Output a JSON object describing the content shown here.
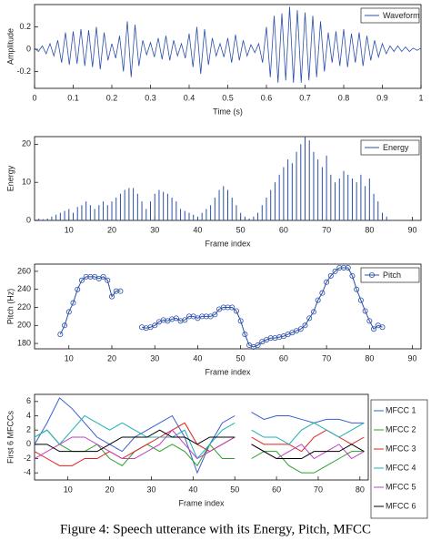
{
  "chart_data": [
    {
      "type": "line",
      "ylabel": "Amplitude",
      "xlabel": "Time (s)",
      "legend": "upper right",
      "xlim": [
        0,
        1
      ],
      "ylim": [
        -0.35,
        0.4
      ],
      "xticks": [
        0,
        0.1,
        0.2,
        0.3,
        0.4,
        0.5,
        0.6,
        0.7,
        0.8,
        0.9,
        1
      ],
      "yticks": [
        -0.2,
        0,
        0.2
      ],
      "x": [
        0,
        0.01,
        0.02,
        0.03,
        0.04,
        0.05,
        0.06,
        0.07,
        0.08,
        0.09,
        0.1,
        0.11,
        0.12,
        0.13,
        0.14,
        0.15,
        0.16,
        0.17,
        0.18,
        0.19,
        0.2,
        0.21,
        0.22,
        0.23,
        0.24,
        0.25,
        0.26,
        0.27,
        0.28,
        0.29,
        0.3,
        0.31,
        0.32,
        0.33,
        0.34,
        0.35,
        0.36,
        0.37,
        0.38,
        0.39,
        0.4,
        0.41,
        0.42,
        0.43,
        0.44,
        0.45,
        0.46,
        0.47,
        0.48,
        0.49,
        0.5,
        0.51,
        0.52,
        0.53,
        0.54,
        0.55,
        0.56,
        0.57,
        0.58,
        0.59,
        0.6,
        0.61,
        0.62,
        0.63,
        0.64,
        0.65,
        0.66,
        0.67,
        0.68,
        0.69,
        0.7,
        0.71,
        0.72,
        0.73,
        0.74,
        0.75,
        0.76,
        0.77,
        0.78,
        0.79,
        0.8,
        0.81,
        0.82,
        0.83,
        0.84,
        0.85,
        0.86,
        0.87,
        0.88,
        0.89,
        0.9,
        0.91,
        0.92,
        0.93,
        0.94,
        0.95,
        0.96,
        0.97,
        0.98,
        0.99,
        1
      ],
      "series": [
        {
          "name": "Waveform",
          "color": "#2b4fa8",
          "values": [
            0.01,
            -0.02,
            0.03,
            -0.04,
            0.05,
            -0.06,
            0.08,
            -0.12,
            0.15,
            -0.14,
            0.16,
            -0.13,
            0.18,
            -0.15,
            0.17,
            -0.16,
            0.2,
            -0.18,
            0.15,
            -0.1,
            0.05,
            -0.08,
            0.12,
            -0.2,
            0.25,
            -0.25,
            0.22,
            -0.15,
            0.08,
            -0.05,
            0.06,
            -0.07,
            0.1,
            -0.09,
            0.12,
            -0.1,
            0.08,
            -0.06,
            0.05,
            -0.08,
            0.14,
            -0.16,
            0.2,
            -0.22,
            0.18,
            -0.14,
            0.1,
            -0.06,
            0.05,
            -0.07,
            0.1,
            -0.12,
            0.13,
            -0.1,
            0.08,
            -0.06,
            0.04,
            -0.03,
            0.05,
            -0.12,
            0.2,
            -0.25,
            0.3,
            -0.3,
            0.32,
            -0.28,
            0.38,
            -0.3,
            0.35,
            -0.3,
            0.33,
            -0.28,
            0.3,
            -0.25,
            0.25,
            -0.2,
            0.15,
            -0.12,
            0.16,
            -0.15,
            0.18,
            -0.16,
            0.14,
            -0.12,
            0.15,
            -0.15,
            0.12,
            -0.1,
            0.08,
            -0.07,
            0.05,
            -0.04,
            0.03,
            -0.02,
            0.03,
            -0.02,
            0.02,
            -0.02,
            0.01,
            -0.01,
            0.01
          ]
        }
      ]
    },
    {
      "type": "stem",
      "ylabel": "Energy",
      "xlabel": "Frame index",
      "legend": "upper right",
      "xlim": [
        2,
        92
      ],
      "ylim": [
        0,
        22
      ],
      "xticks": [
        10,
        20,
        30,
        40,
        50,
        60,
        70,
        80,
        90
      ],
      "yticks": [
        0,
        10,
        20
      ],
      "x": [
        3,
        4,
        5,
        6,
        7,
        8,
        9,
        10,
        11,
        12,
        13,
        14,
        15,
        16,
        17,
        18,
        19,
        20,
        21,
        22,
        23,
        24,
        25,
        26,
        27,
        28,
        29,
        30,
        31,
        32,
        33,
        34,
        35,
        36,
        37,
        38,
        39,
        40,
        41,
        42,
        43,
        44,
        45,
        46,
        47,
        48,
        49,
        50,
        51,
        52,
        53,
        54,
        55,
        56,
        57,
        58,
        59,
        60,
        61,
        62,
        63,
        64,
        65,
        66,
        67,
        68,
        69,
        70,
        71,
        72,
        73,
        74,
        75,
        76,
        77,
        78,
        79,
        80,
        81,
        82,
        83,
        84
      ],
      "series": [
        {
          "name": "Energy",
          "color": "#2b4fa8",
          "values": [
            0.5,
            0.3,
            0.5,
            1,
            1.5,
            2,
            2.5,
            3,
            2,
            3.5,
            4,
            5,
            4,
            3,
            4,
            5,
            4,
            5,
            6,
            7,
            8,
            8.5,
            8.5,
            7,
            5,
            3,
            5,
            7,
            8,
            7.5,
            7,
            6,
            5,
            3,
            2.5,
            2,
            1.5,
            1,
            2,
            3,
            4,
            6,
            8,
            9,
            8,
            6,
            4,
            2,
            1,
            0.5,
            1,
            2,
            4,
            6,
            8,
            10,
            12,
            14,
            16,
            15,
            18,
            20,
            22,
            21,
            18,
            16,
            14,
            17,
            12,
            10,
            11,
            13,
            12,
            11,
            10,
            12,
            9,
            11,
            7,
            5,
            2,
            1
          ]
        }
      ]
    },
    {
      "type": "line",
      "marker": "circle",
      "ylabel": "Pitch (Hz)",
      "xlabel": "Frame index",
      "legend": "upper right",
      "xlim": [
        2,
        92
      ],
      "ylim": [
        174,
        268
      ],
      "xticks": [
        10,
        20,
        30,
        40,
        50,
        60,
        70,
        80,
        90
      ],
      "yticks": [
        180,
        200,
        220,
        240,
        260
      ],
      "x": [
        8,
        9,
        10,
        11,
        12,
        13,
        14,
        15,
        16,
        17,
        18,
        19,
        20,
        21,
        22,
        23,
        24,
        25,
        26,
        27,
        28,
        29,
        30,
        31,
        32,
        33,
        34,
        35,
        36,
        37,
        38,
        39,
        40,
        41,
        42,
        43,
        44,
        45,
        46,
        47,
        48,
        49,
        50,
        51,
        52,
        53,
        54,
        55,
        56,
        57,
        58,
        59,
        60,
        61,
        62,
        63,
        64,
        65,
        66,
        67,
        68,
        69,
        70,
        71,
        72,
        73,
        74,
        75,
        76,
        77,
        78,
        79,
        80,
        81,
        82,
        83
      ],
      "series": [
        {
          "name": "Pitch",
          "color": "#2b4fa8",
          "values": [
            190,
            200,
            215,
            225,
            240,
            250,
            254,
            254,
            254,
            252,
            254,
            250,
            232,
            238,
            238,
            null,
            null,
            null,
            null,
            198,
            197,
            198,
            200,
            204,
            206,
            205,
            207,
            208,
            205,
            206,
            210,
            210,
            208,
            210,
            210,
            210,
            212,
            218,
            220,
            220,
            220,
            216,
            205,
            190,
            178,
            176,
            178,
            182,
            184,
            186,
            186,
            187,
            188,
            190,
            192,
            194,
            196,
            200,
            208,
            215,
            228,
            236,
            248,
            255,
            260,
            264,
            264,
            264,
            255,
            240,
            228,
            216,
            205,
            196,
            200,
            198
          ]
        }
      ]
    },
    {
      "type": "line",
      "ylabel": "First 6 MFCCs",
      "xlabel": "Frame index",
      "legend": "outside right",
      "xlim": [
        2,
        82
      ],
      "ylim": [
        -5,
        7
      ],
      "xticks": [
        10,
        20,
        30,
        40,
        50,
        60,
        70,
        80
      ],
      "yticks": [
        -4,
        -2,
        0,
        2,
        4,
        6
      ],
      "x": [
        2,
        5,
        8,
        11,
        14,
        17,
        20,
        23,
        26,
        29,
        32,
        35,
        38,
        41,
        44,
        47,
        50,
        52,
        54,
        57,
        60,
        63,
        66,
        69,
        72,
        75,
        78,
        81
      ],
      "series": [
        {
          "name": "MFCC 1",
          "color": "#3a5fcd",
          "values": [
            0,
            3,
            6.5,
            5,
            3,
            1,
            0,
            -1,
            1,
            2,
            3,
            4,
            1,
            -4,
            0,
            3,
            4,
            null,
            4.5,
            3.5,
            4,
            4,
            3.5,
            3,
            3.5,
            3.5,
            3,
            3
          ]
        },
        {
          "name": "MFCC 2",
          "color": "#2ca02c",
          "values": [
            1,
            2,
            0,
            -1,
            -1,
            0,
            -2,
            -3,
            -1,
            0,
            -1,
            0,
            -1,
            -3,
            0,
            -2,
            -2,
            null,
            -2,
            -1,
            -1,
            -3,
            -4,
            -4,
            -3,
            -2,
            -1,
            -1
          ]
        },
        {
          "name": "MFCC 3",
          "color": "#e02020",
          "values": [
            -1,
            -2,
            -3,
            -3,
            -2,
            -2,
            -1,
            -2,
            -1,
            0,
            1,
            2,
            3,
            0,
            -1,
            0,
            1,
            null,
            1,
            0,
            0,
            0,
            -1,
            1,
            2,
            1,
            0,
            1
          ]
        },
        {
          "name": "MFCC 4",
          "color": "#20b0b0",
          "values": [
            1,
            2,
            0,
            2,
            4,
            3,
            2,
            3,
            2,
            1,
            1,
            1,
            2,
            -2,
            0,
            2,
            3,
            null,
            2,
            1,
            1,
            0,
            2,
            3,
            2,
            1,
            2,
            3
          ]
        },
        {
          "name": "MFCC 5",
          "color": "#c040c0",
          "values": [
            -2,
            -1,
            0,
            1,
            1,
            0,
            -1,
            -2,
            -2,
            -1,
            0,
            2,
            0,
            -2,
            -1,
            0,
            1,
            null,
            0,
            -1,
            -2,
            -1,
            0,
            -2,
            -1,
            0,
            -2,
            -1
          ]
        },
        {
          "name": "MFCC 6",
          "color": "#000000",
          "values": [
            0,
            0,
            -1,
            -1,
            -1,
            -1,
            0,
            1,
            1,
            1,
            2,
            1,
            1,
            0,
            1,
            1,
            1,
            null,
            0,
            -1,
            -2,
            -2,
            -2,
            -1,
            -1,
            -1,
            0,
            -1
          ]
        }
      ]
    }
  ],
  "caption": "Figure 4: Speech utterance with its Energy, Pitch, MFCC"
}
